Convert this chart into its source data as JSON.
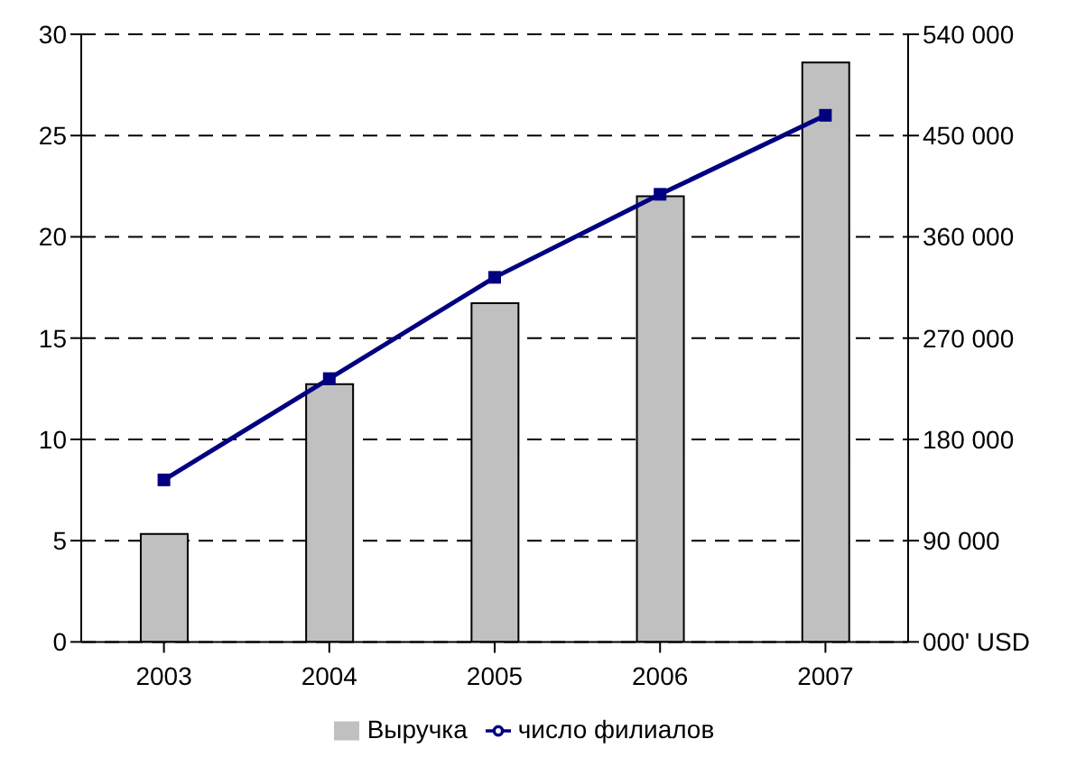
{
  "chart_data": {
    "type": "bar",
    "categories": [
      "2003",
      "2004",
      "2005",
      "2006",
      "2007"
    ],
    "series": [
      {
        "name": "Выручка",
        "axis": "y2",
        "color": "#c0c0c0",
        "values": [
          96000,
          229000,
          301000,
          396000,
          515000
        ]
      },
      {
        "name": "число филиалов",
        "type": "line",
        "color": "#000080",
        "values": [
          8,
          13,
          18,
          22.1,
          26
        ]
      }
    ],
    "ylim": [
      0,
      30
    ],
    "yticks": [
      0,
      5,
      10,
      15,
      20,
      25,
      30
    ],
    "y2lim": [
      0,
      540000
    ],
    "y2ticks": [
      {
        "value": 0,
        "label": "000' USD"
      },
      {
        "value": 90000,
        "label": "90 000"
      },
      {
        "value": 180000,
        "label": "180 000"
      },
      {
        "value": 270000,
        "label": "270 000"
      },
      {
        "value": 360000,
        "label": "360 000"
      },
      {
        "value": 450000,
        "label": "450 000"
      },
      {
        "value": 540000,
        "label": "540 000"
      }
    ],
    "grid": "y",
    "legend": "bottom",
    "marker": "square",
    "line_style": "solid"
  }
}
